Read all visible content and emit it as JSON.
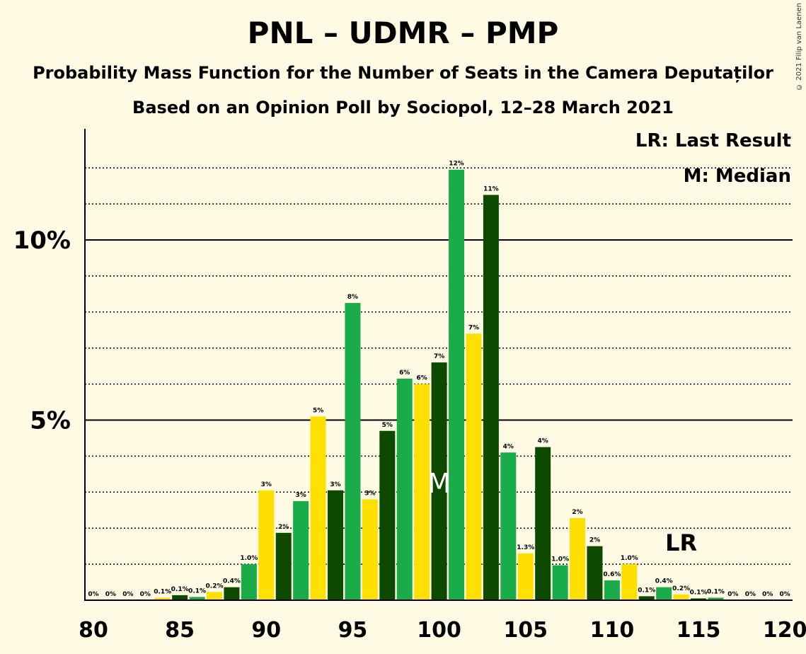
{
  "header": {
    "title": "PNL – UDMR – PMP",
    "subtitle1": "Probability Mass Function for the Number of Seats in the Camera Deputaților",
    "subtitle2": "Based on an Opinion Poll by Sociopol, 12–28 March 2021",
    "copyright": "© 2021 Filip van Laenen"
  },
  "legend": {
    "last_result": "LR: Last Result",
    "median": "M: Median"
  },
  "colors": {
    "background": "#fefae3",
    "green": "#1aac48",
    "yellow": "#fde000",
    "dark_green": "#0d4a00",
    "axis": "#000000"
  },
  "chart_data": {
    "type": "bar",
    "x": [
      80,
      81,
      82,
      83,
      84,
      85,
      86,
      87,
      88,
      89,
      90,
      91,
      92,
      93,
      94,
      95,
      96,
      97,
      98,
      99,
      100,
      101,
      102,
      103,
      104,
      105,
      106,
      107,
      108,
      109,
      110,
      111,
      112,
      113,
      114,
      115,
      116,
      117,
      118,
      119,
      120
    ],
    "values": [
      0,
      0,
      0,
      0,
      0.07,
      0.14,
      0.09,
      0.23,
      0.36,
      1.0,
      3.05,
      1.87,
      2.75,
      5.1,
      3.05,
      8.25,
      2.8,
      4.7,
      6.15,
      6.0,
      6.6,
      11.95,
      7.4,
      11.25,
      4.1,
      1.3,
      4.25,
      0.97,
      2.28,
      1.5,
      0.55,
      1.0,
      0.11,
      0.36,
      0.16,
      0.05,
      0.07,
      0,
      0,
      0,
      0
    ],
    "labels": [
      "0%",
      "0%",
      "0%",
      "0%",
      "0.1%",
      "0.1%",
      "0.1%",
      "0.2%",
      "0.4%",
      "1.0%",
      "3%",
      "2%",
      "3%",
      "5%",
      "3%",
      "8%",
      "3%",
      "5%",
      "6%",
      "6%",
      "7%",
      "12%",
      "7%",
      "11%",
      "4%",
      "1.3%",
      "4%",
      "1.0%",
      "2%",
      "2%",
      "0.6%",
      "1.0%",
      "0.1%",
      "0.4%",
      "0.2%",
      "0.1%",
      "0.1%",
      "0%",
      "0%",
      "0%",
      "0%"
    ],
    "bar_colors": [
      "green",
      "green",
      "green",
      "yellow",
      "yellow",
      "dark_green",
      "green",
      "yellow",
      "dark_green",
      "green",
      "yellow",
      "dark_green",
      "green",
      "yellow",
      "dark_green",
      "green",
      "yellow",
      "dark_green",
      "green",
      "yellow",
      "dark_green",
      "green",
      "yellow",
      "dark_green",
      "green",
      "yellow",
      "dark_green",
      "green",
      "yellow",
      "dark_green",
      "green",
      "yellow",
      "dark_green",
      "green",
      "yellow",
      "dark_green",
      "green",
      "yellow",
      "dark_green",
      "green",
      "yellow"
    ],
    "x_ticks": [
      80,
      85,
      90,
      95,
      100,
      105,
      110,
      115,
      120
    ],
    "y_ticks": [
      "5%",
      "10%"
    ],
    "y_tick_values": [
      5,
      10
    ],
    "ylim": [
      0,
      13
    ],
    "dotted_grid": [
      1,
      2,
      3,
      4,
      6,
      7,
      8,
      9,
      11,
      12
    ],
    "median": {
      "x": 100,
      "label": "M"
    },
    "last_result": {
      "x": 114,
      "label": "LR"
    }
  }
}
